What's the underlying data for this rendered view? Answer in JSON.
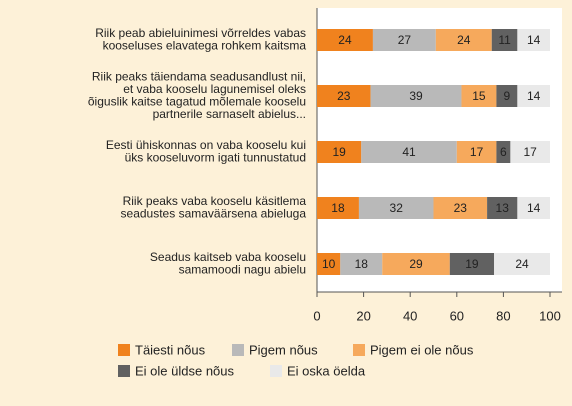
{
  "chart_data": {
    "type": "stacked_bar_horizontal",
    "categories": [
      [
        "Riik peab abieluinimesi võrreldes vabas",
        "kooseluses elavatega rohkem kaitsma"
      ],
      [
        "Riik peaks täiendama seadusandlust nii,",
        "et vaba kooselu lagunemisel oleks",
        "õiguslik kaitse tagatud mõlemale kooselu",
        "partnerile sarnaselt abielus..."
      ],
      [
        "Eesti ühiskonnas on vaba kooselu kui",
        "üks kooseluvorm igati tunnustatud"
      ],
      [
        "Riik peaks vaba kooselu käsitlema",
        "seadustes samaväärsena abieluga"
      ],
      [
        "Seadus kaitseb vaba kooselu",
        "samamoodi nagu abielu"
      ]
    ],
    "series": [
      {
        "name": "Täiesti nõus",
        "color": "#f0821e",
        "values": [
          24,
          23,
          19,
          18,
          10
        ]
      },
      {
        "name": "Pigem nõus",
        "color": "#b9b9b9",
        "values": [
          27,
          39,
          41,
          32,
          18
        ]
      },
      {
        "name": "Pigem ei ole nõus",
        "color": "#f6a95c",
        "values": [
          24,
          15,
          17,
          23,
          29
        ]
      },
      {
        "name": "Ei ole üldse nõus",
        "color": "#616161",
        "values": [
          11,
          9,
          6,
          13,
          19
        ]
      },
      {
        "name": "Ei oska öelda",
        "color": "#e9e9e9",
        "values": [
          14,
          14,
          17,
          14,
          24
        ]
      }
    ],
    "xlim": [
      0,
      100
    ],
    "xticks": [
      0,
      20,
      40,
      60,
      80,
      100
    ]
  }
}
